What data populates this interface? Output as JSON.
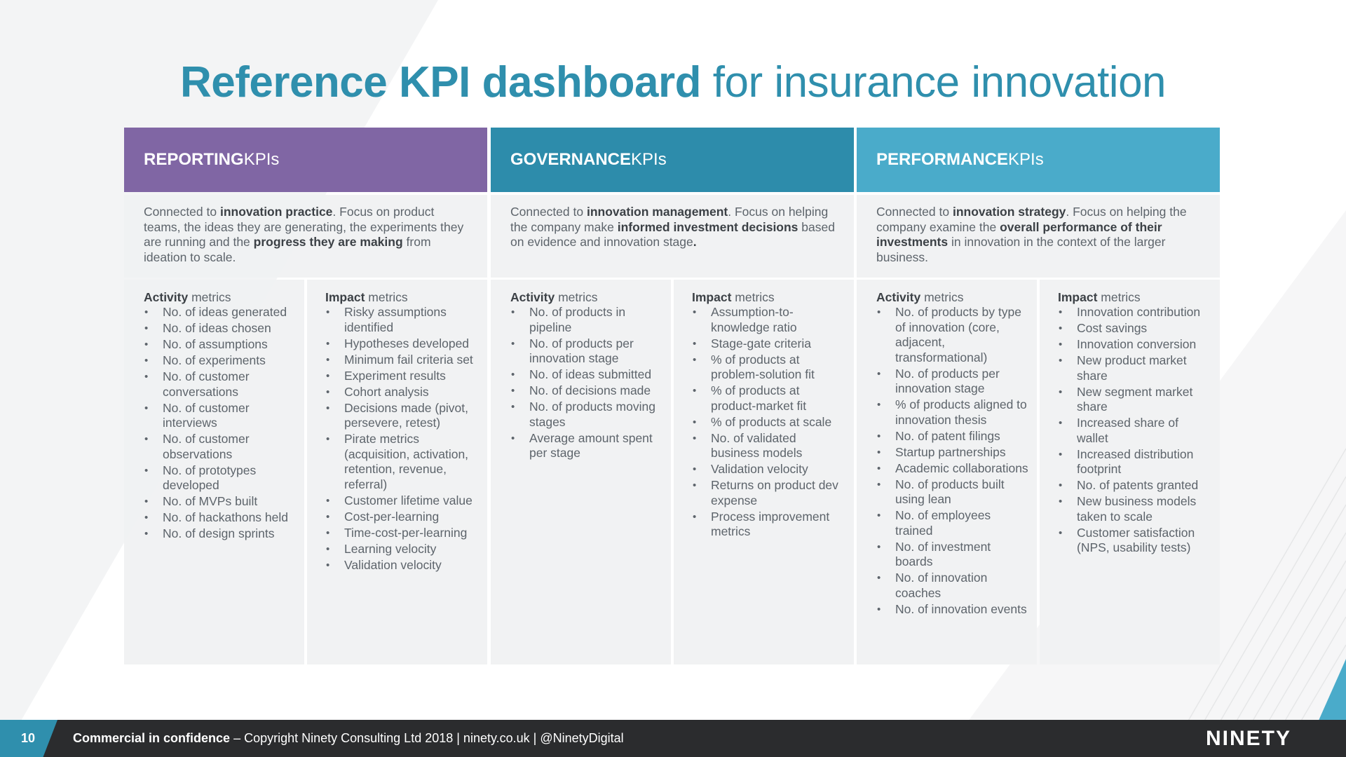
{
  "title": {
    "bold": "Reference KPI dashboard",
    "rest": " for insurance innovation"
  },
  "columns": [
    {
      "head_bold": "REPORTING",
      "head_rest": " KPIs",
      "desc": [
        {
          "t": "Connected to ",
          "b": false
        },
        {
          "t": "innovation practice",
          "b": true
        },
        {
          "t": ". Focus on product teams, the ideas they are generating, the experiments they are running and the ",
          "b": false
        },
        {
          "t": "progress they are making",
          "b": true
        },
        {
          "t": " from ideation to scale.",
          "b": false
        }
      ],
      "activity": {
        "bold": "Activity",
        "rest": " metrics",
        "items": [
          "No. of ideas generated",
          "No. of ideas chosen",
          "No. of assumptions",
          "No. of experiments",
          "No. of customer conversations",
          "No. of customer interviews",
          "No. of customer observations",
          "No. of prototypes developed",
          "No. of MVPs built",
          "No. of hackathons held",
          "No. of design sprints"
        ]
      },
      "impact": {
        "bold": "Impact",
        "rest": " metrics",
        "items": [
          "Risky assumptions identified",
          "Hypotheses developed",
          "Minimum fail criteria set",
          "Experiment results",
          "Cohort analysis",
          "Decisions made (pivot, persevere, retest)",
          "Pirate metrics (acquisition, activation, retention, revenue, referral)",
          "Customer lifetime value",
          "Cost-per-learning",
          "Time-cost-per-learning",
          "Learning velocity",
          "Validation velocity"
        ]
      }
    },
    {
      "head_bold": "GOVERNANCE",
      "head_rest": " KPIs",
      "desc": [
        {
          "t": "Connected to ",
          "b": false
        },
        {
          "t": "innovation management",
          "b": true
        },
        {
          "t": ". Focus on helping the company make ",
          "b": false
        },
        {
          "t": "informed investment decisions",
          "b": true
        },
        {
          "t": " based on evidence and innovation stage",
          "b": false
        },
        {
          "t": ".",
          "b": true
        }
      ],
      "activity": {
        "bold": "Activity",
        "rest": " metrics",
        "items": [
          "No. of products in pipeline",
          "No. of products per innovation stage",
          "No. of ideas submitted",
          "No. of decisions made",
          "No. of products moving stages",
          "Average amount spent per stage"
        ]
      },
      "impact": {
        "bold": "Impact",
        "rest": " metrics",
        "items": [
          "Assumption-to-knowledge ratio",
          "Stage-gate criteria",
          "% of products at problem-solution fit",
          "% of products at product-market fit",
          "% of products at scale",
          "No. of validated business models",
          "Validation velocity",
          "Returns on product dev expense",
          "Process improvement metrics"
        ]
      }
    },
    {
      "head_bold": "PERFORMANCE",
      "head_rest": " KPIs",
      "desc": [
        {
          "t": "Connected to ",
          "b": false
        },
        {
          "t": "innovation strategy",
          "b": true
        },
        {
          "t": ". Focus on helping the company examine the ",
          "b": false
        },
        {
          "t": "overall performance of their investments",
          "b": true
        },
        {
          "t": " in innovation in the context of the larger business.",
          "b": false
        }
      ],
      "activity": {
        "bold": "Activity",
        "rest": " metrics",
        "items": [
          "No. of products by type of innovation (core, adjacent, transformational)",
          "No. of products per innovation stage",
          "% of products aligned to innovation thesis",
          "No. of patent filings",
          "Startup partnerships",
          "Academic collaborations",
          "No. of products built using lean",
          "No. of employees trained",
          "No. of investment boards",
          "No. of innovation coaches",
          "No. of innovation events"
        ]
      },
      "impact": {
        "bold": "Impact",
        "rest": " metrics",
        "items": [
          "Innovation contribution",
          "Cost savings",
          "Innovation conversion",
          "New product market share",
          "New segment market share",
          "Increased share of wallet",
          "Increased distribution footprint",
          "No. of patents granted",
          "New business models taken to scale",
          "Customer satisfaction (NPS, usability tests)"
        ]
      }
    }
  ],
  "footer": {
    "page": "10",
    "bold": "Commercial in confidence",
    "rest": " – Copyright Ninety Consulting Ltd 2018  |  ninety.co.uk  |  @NinetyDigital",
    "logo": "NINETY"
  },
  "colors": {
    "reporting": "#8066a4",
    "governance": "#2d8cab",
    "performance": "#4aabca",
    "title": "#2f8fad"
  }
}
